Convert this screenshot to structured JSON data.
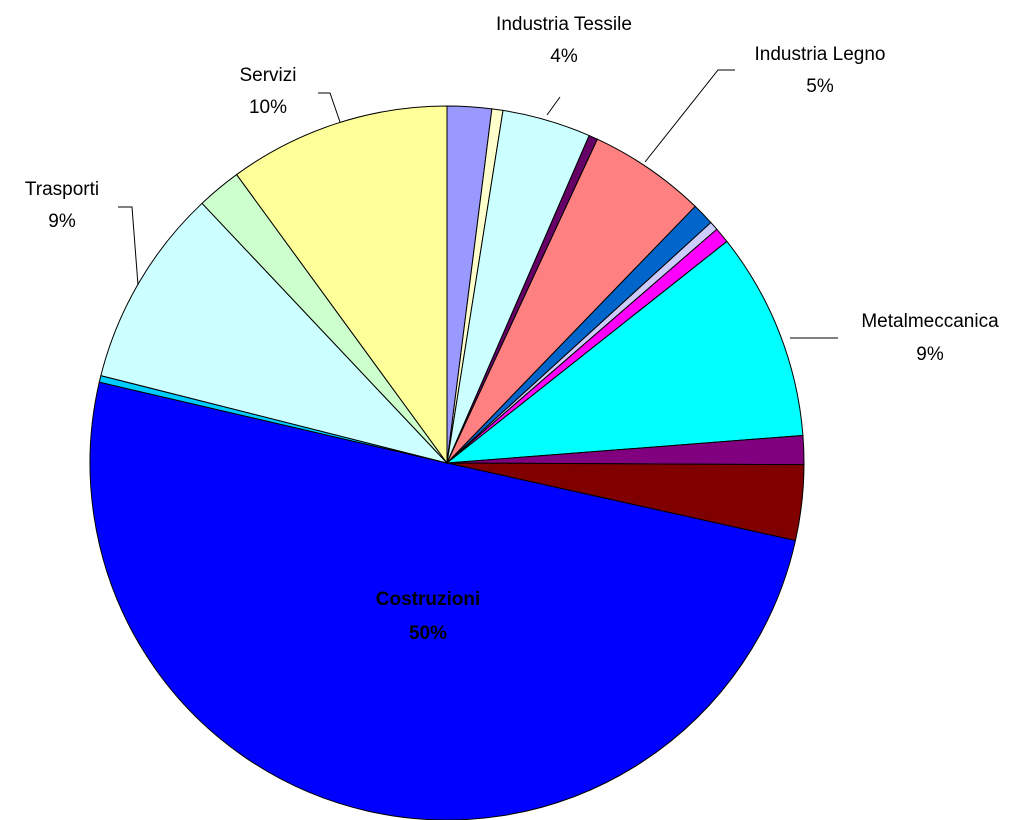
{
  "chart_data": {
    "type": "pie",
    "categories": [
      null,
      null,
      "Industria Tessile",
      null,
      "Industria Legno",
      null,
      null,
      null,
      "Metalmeccanica",
      null,
      null,
      "Costruzioni",
      null,
      "Trasporti",
      null,
      "Servizi"
    ],
    "values": [
      2,
      0.5,
      4,
      0.4,
      5.3,
      1,
      0.4,
      0.7,
      9.4,
      1.3,
      3.4,
      50,
      0.3,
      9,
      2,
      10
    ],
    "value_labels": [
      null,
      null,
      "4%",
      null,
      "5%",
      null,
      null,
      null,
      "9%",
      null,
      null,
      "50%",
      null,
      "9%",
      null,
      "10%"
    ],
    "colors": [
      "#9999ff",
      "#ffffcc",
      "#ccffff",
      "#660066",
      "#ff8080",
      "#0066cc",
      "#ccccff",
      "#ff00ff",
      "#00ffff",
      "#800080",
      "#800000",
      "#0000ff",
      "#00ccff",
      "#ccffff",
      "#ccffcc",
      "#ffff99"
    ]
  }
}
